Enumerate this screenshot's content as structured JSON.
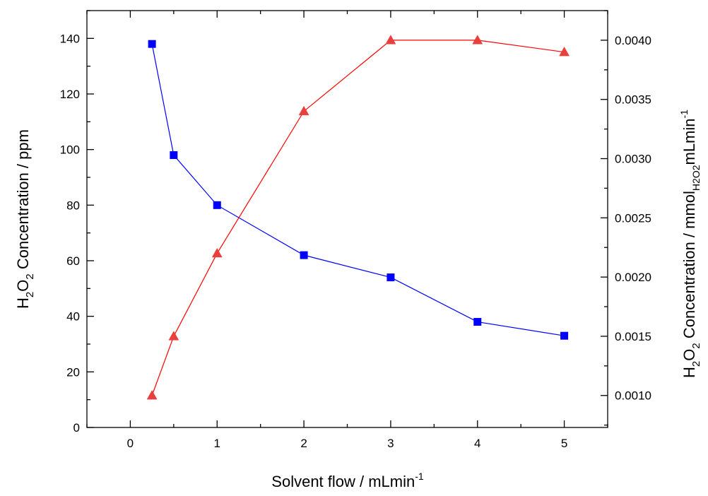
{
  "chart_data": {
    "type": "line",
    "x": [
      0.25,
      0.5,
      1,
      2,
      3,
      4,
      5
    ],
    "xlabel": "Solvent flow / mLmin",
    "xlabel_sup": "-1",
    "xlim": [
      -0.5,
      5.5
    ],
    "xticks": [
      "0",
      "1",
      "2",
      "3",
      "4",
      "5"
    ],
    "ylabel": {
      "h": "H",
      "sub1": "2",
      "o": "O",
      "sub2": "2",
      "rest": " Concentration / ppm"
    },
    "ylim": [
      0,
      150
    ],
    "yticks": [
      "0",
      "20",
      "40",
      "60",
      "80",
      "100",
      "120",
      "140"
    ],
    "y2label": {
      "h": "H",
      "sub1": "2",
      "o": "O",
      "sub2": "2",
      "mid": " Concentration / mmol",
      "sub3": "H2O2",
      "end": "mLmin",
      "sup": "-1"
    },
    "y2lim": [
      0.00073,
      0.00425
    ],
    "y2ticks": [
      "0.0010",
      "0.0015",
      "0.0020",
      "0.0025",
      "0.0030",
      "0.0035",
      "0.0040"
    ],
    "series": [
      {
        "axis": "left",
        "marker": "square",
        "color": "#0000ff",
        "values": [
          138,
          98,
          80,
          62,
          54,
          38,
          33
        ]
      },
      {
        "axis": "right",
        "marker": "triangle",
        "color": "#ff0000",
        "marker_fill": "#e8403c",
        "values": [
          0.001,
          0.0015,
          0.0022,
          0.0034,
          0.004,
          0.004,
          0.0039
        ]
      }
    ],
    "grid": false,
    "legend": "none"
  }
}
